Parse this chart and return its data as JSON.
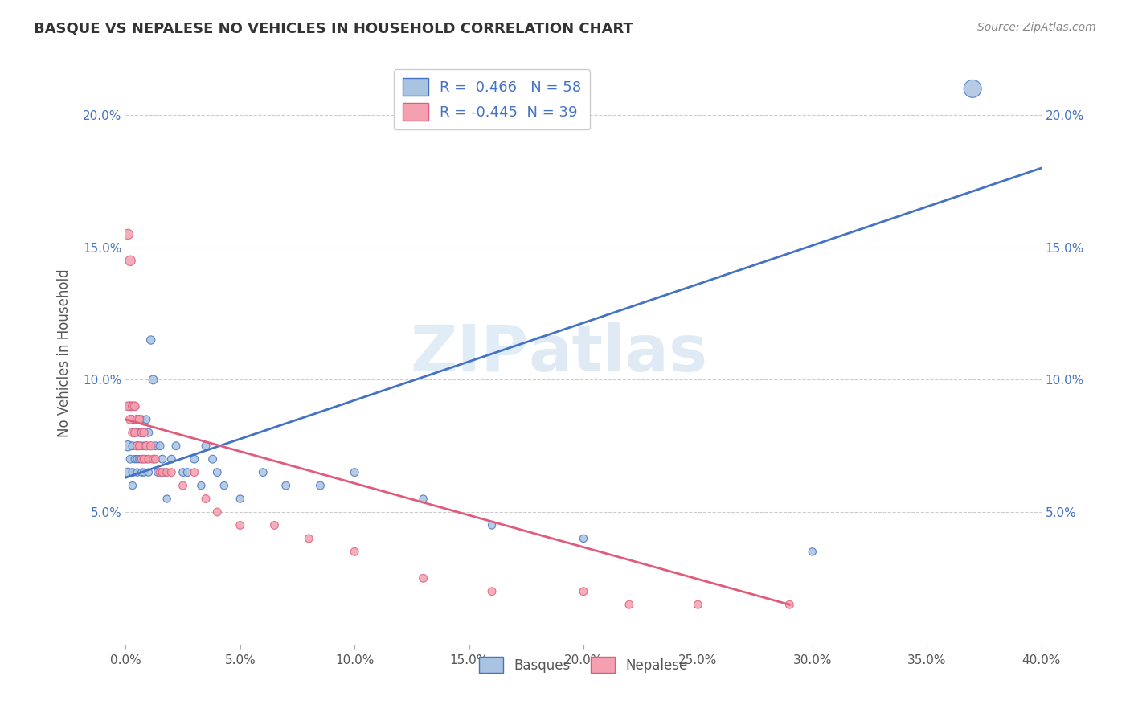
{
  "title": "BASQUE VS NEPALESE NO VEHICLES IN HOUSEHOLD CORRELATION CHART",
  "source": "Source: ZipAtlas.com",
  "ylabel": "No Vehicles in Household",
  "xlabel": "",
  "xlim": [
    0.0,
    0.4
  ],
  "ylim": [
    0.0,
    0.22
  ],
  "xtick_vals": [
    0.0,
    0.05,
    0.1,
    0.15,
    0.2,
    0.25,
    0.3,
    0.35,
    0.4
  ],
  "ytick_vals": [
    0.0,
    0.05,
    0.1,
    0.15,
    0.2
  ],
  "basque_color": "#a8c4e0",
  "nepalese_color": "#f4a0b0",
  "basque_edge_color": "#4472c4",
  "nepalese_edge_color": "#e05c7a",
  "basque_line_color": "#4472c4",
  "nepalese_line_color": "#e05c7a",
  "basque_R": 0.466,
  "basque_N": 58,
  "nepalese_R": -0.445,
  "nepalese_N": 39,
  "watermark_zip": "ZIP",
  "watermark_atlas": "atlas",
  "legend_label_basque": "Basques",
  "legend_label_nepalese": "Nepalese",
  "basque_line_x0": 0.0,
  "basque_line_y0": 0.063,
  "basque_line_x1": 0.4,
  "basque_line_y1": 0.18,
  "nepalese_line_x0": 0.0,
  "nepalese_line_y0": 0.085,
  "nepalese_line_x1": 0.29,
  "nepalese_line_y1": 0.015,
  "basque_x": [
    0.001,
    0.001,
    0.002,
    0.002,
    0.003,
    0.003,
    0.003,
    0.003,
    0.004,
    0.004,
    0.004,
    0.005,
    0.005,
    0.005,
    0.005,
    0.006,
    0.006,
    0.006,
    0.006,
    0.007,
    0.007,
    0.007,
    0.007,
    0.008,
    0.008,
    0.008,
    0.009,
    0.009,
    0.01,
    0.01,
    0.011,
    0.012,
    0.013,
    0.014,
    0.015,
    0.016,
    0.017,
    0.018,
    0.02,
    0.022,
    0.025,
    0.027,
    0.03,
    0.033,
    0.035,
    0.038,
    0.04,
    0.043,
    0.05,
    0.06,
    0.07,
    0.085,
    0.1,
    0.13,
    0.16,
    0.2,
    0.3,
    0.37
  ],
  "basque_y": [
    0.075,
    0.065,
    0.09,
    0.07,
    0.085,
    0.075,
    0.065,
    0.06,
    0.09,
    0.08,
    0.07,
    0.085,
    0.075,
    0.07,
    0.065,
    0.085,
    0.08,
    0.075,
    0.07,
    0.085,
    0.08,
    0.075,
    0.065,
    0.08,
    0.075,
    0.065,
    0.085,
    0.07,
    0.08,
    0.065,
    0.115,
    0.1,
    0.075,
    0.065,
    0.075,
    0.07,
    0.065,
    0.055,
    0.07,
    0.075,
    0.065,
    0.065,
    0.07,
    0.06,
    0.075,
    0.07,
    0.065,
    0.06,
    0.055,
    0.065,
    0.06,
    0.06,
    0.065,
    0.055,
    0.045,
    0.04,
    0.035,
    0.21
  ],
  "basque_sizes": [
    80,
    60,
    60,
    50,
    50,
    50,
    50,
    45,
    50,
    50,
    45,
    50,
    50,
    45,
    45,
    50,
    50,
    45,
    45,
    50,
    50,
    45,
    45,
    50,
    45,
    45,
    50,
    45,
    50,
    45,
    55,
    60,
    50,
    45,
    50,
    50,
    45,
    45,
    50,
    50,
    50,
    50,
    50,
    45,
    50,
    50,
    50,
    45,
    45,
    50,
    50,
    50,
    50,
    45,
    45,
    45,
    45,
    250
  ],
  "nepalese_x": [
    0.001,
    0.001,
    0.002,
    0.002,
    0.003,
    0.003,
    0.004,
    0.004,
    0.005,
    0.005,
    0.006,
    0.006,
    0.007,
    0.007,
    0.008,
    0.008,
    0.009,
    0.01,
    0.011,
    0.012,
    0.013,
    0.015,
    0.016,
    0.018,
    0.02,
    0.025,
    0.03,
    0.035,
    0.04,
    0.05,
    0.065,
    0.08,
    0.1,
    0.13,
    0.16,
    0.2,
    0.22,
    0.25,
    0.29
  ],
  "nepalese_y": [
    0.155,
    0.09,
    0.145,
    0.085,
    0.09,
    0.08,
    0.09,
    0.08,
    0.085,
    0.075,
    0.085,
    0.075,
    0.08,
    0.07,
    0.08,
    0.07,
    0.075,
    0.07,
    0.075,
    0.07,
    0.07,
    0.065,
    0.065,
    0.065,
    0.065,
    0.06,
    0.065,
    0.055,
    0.05,
    0.045,
    0.045,
    0.04,
    0.035,
    0.025,
    0.02,
    0.02,
    0.015,
    0.015,
    0.015
  ],
  "nepalese_sizes": [
    80,
    60,
    80,
    60,
    60,
    55,
    60,
    55,
    60,
    55,
    55,
    50,
    55,
    50,
    55,
    50,
    55,
    50,
    55,
    50,
    50,
    50,
    50,
    50,
    50,
    50,
    50,
    50,
    50,
    50,
    50,
    50,
    50,
    50,
    50,
    50,
    50,
    50,
    50
  ]
}
